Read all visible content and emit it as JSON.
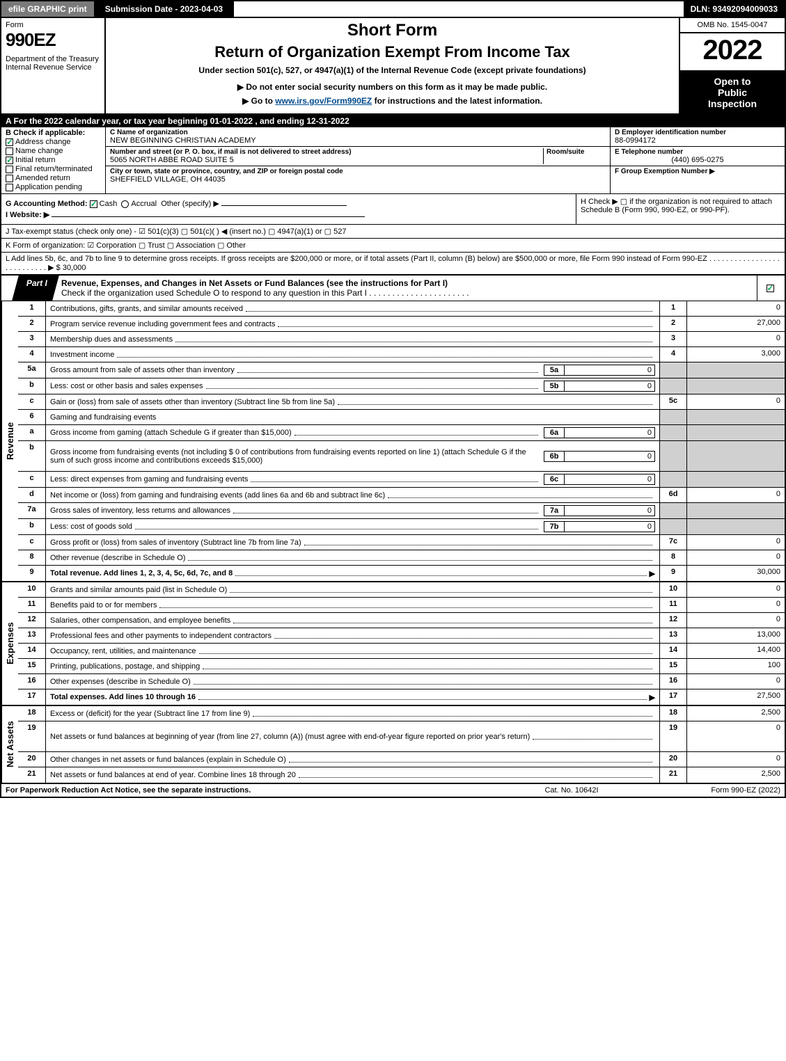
{
  "topbar": {
    "efile": "efile GRAPHIC print",
    "submission": "Submission Date - 2023-04-03",
    "dln": "DLN: 93492094009033"
  },
  "header": {
    "form_word": "Form",
    "form_num": "990EZ",
    "dept": "Department of the Treasury\nInternal Revenue Service",
    "title1": "Short Form",
    "title2": "Return of Organization Exempt From Income Tax",
    "sub1": "Under section 501(c), 527, or 4947(a)(1) of the Internal Revenue Code (except private foundations)",
    "sub2": "▶ Do not enter social security numbers on this form as it may be made public.",
    "sub3_pre": "▶ Go to ",
    "sub3_link": "www.irs.gov/Form990EZ",
    "sub3_post": " for instructions and the latest information.",
    "omb": "OMB No. 1545-0047",
    "year": "2022",
    "inspect1": "Open to",
    "inspect2": "Public",
    "inspect3": "Inspection"
  },
  "row_a": "A  For the 2022 calendar year, or tax year beginning 01-01-2022 , and ending 12-31-2022",
  "section_b": {
    "title": "B  Check if applicable:",
    "items": [
      {
        "label": "Address change",
        "checked": true
      },
      {
        "label": "Name change",
        "checked": false
      },
      {
        "label": "Initial return",
        "checked": true
      },
      {
        "label": "Final return/terminated",
        "checked": false
      },
      {
        "label": "Amended return",
        "checked": false
      },
      {
        "label": "Application pending",
        "checked": false
      }
    ]
  },
  "section_c": {
    "name_lbl": "C Name of organization",
    "name_val": "NEW BEGINNING CHRISTIAN ACADEMY",
    "street_lbl": "Number and street (or P. O. box, if mail is not delivered to street address)",
    "room_lbl": "Room/suite",
    "street_val": "5065 NORTH ABBE ROAD SUITE 5",
    "city_lbl": "City or town, state or province, country, and ZIP or foreign postal code",
    "city_val": "SHEFFIELD VILLAGE, OH  44035"
  },
  "section_d": {
    "ein_lbl": "D Employer identification number",
    "ein_val": "88-0994172",
    "phone_lbl": "E Telephone number",
    "phone_val": "(440) 695-0275",
    "group_lbl": "F Group Exemption Number  ▶"
  },
  "row_g": {
    "label": "G Accounting Method:",
    "cash": "Cash",
    "accrual": "Accrual",
    "other": "Other (specify) ▶"
  },
  "row_h": "H  Check ▶  ▢  if the organization is not required to attach Schedule B (Form 990, 990-EZ, or 990-PF).",
  "row_i": "I Website: ▶",
  "row_j": "J Tax-exempt status (check only one) - ☑ 501(c)(3)  ▢ 501(c)(  ) ◀ (insert no.)  ▢ 4947(a)(1) or  ▢ 527",
  "row_k": "K Form of organization:  ☑ Corporation  ▢ Trust  ▢ Association  ▢ Other",
  "row_l": {
    "text": "L Add lines 5b, 6c, and 7b to line 9 to determine gross receipts. If gross receipts are $200,000 or more, or if total assets (Part II, column (B) below) are $500,000 or more, file Form 990 instead of Form 990-EZ . . . . . . . . . . . . . . . . . . . . . . . . . . .  ▶ $",
    "amount": "30,000"
  },
  "part1": {
    "tab": "Part I",
    "title": "Revenue, Expenses, and Changes in Net Assets or Fund Balances (see the instructions for Part I)",
    "subtitle": "Check if the organization used Schedule O to respond to any question in this Part I . . . . . . . . . . . . . . . . . . . . . .",
    "checked": true
  },
  "sections": {
    "revenue": {
      "label": "Revenue",
      "rows": [
        {
          "ln": "1",
          "desc": "Contributions, gifts, grants, and similar amounts received",
          "num": "1",
          "amt": "0"
        },
        {
          "ln": "2",
          "desc": "Program service revenue including government fees and contracts",
          "num": "2",
          "amt": "27,000"
        },
        {
          "ln": "3",
          "desc": "Membership dues and assessments",
          "num": "3",
          "amt": "0"
        },
        {
          "ln": "4",
          "desc": "Investment income",
          "num": "4",
          "amt": "3,000"
        },
        {
          "ln": "5a",
          "desc": "Gross amount from sale of assets other than inventory",
          "sub_n": "5a",
          "sub_v": "0",
          "shade": true
        },
        {
          "ln": "b",
          "desc": "Less: cost or other basis and sales expenses",
          "sub_n": "5b",
          "sub_v": "0",
          "shade": true
        },
        {
          "ln": "c",
          "desc": "Gain or (loss) from sale of assets other than inventory (Subtract line 5b from line 5a)",
          "num": "5c",
          "amt": "0"
        },
        {
          "ln": "6",
          "desc": "Gaming and fundraising events",
          "shade": true,
          "nonum": true
        },
        {
          "ln": "a",
          "desc": "Gross income from gaming (attach Schedule G if greater than $15,000)",
          "sub_n": "6a",
          "sub_v": "0",
          "shade": true
        },
        {
          "ln": "b",
          "desc": "Gross income from fundraising events (not including $ 0  of contributions from fundraising events reported on line 1) (attach Schedule G if the sum of such gross income and contributions exceeds $15,000)",
          "sub_n": "6b",
          "sub_v": "0",
          "shade": true,
          "tall": true
        },
        {
          "ln": "c",
          "desc": "Less: direct expenses from gaming and fundraising events",
          "sub_n": "6c",
          "sub_v": "0",
          "shade": true
        },
        {
          "ln": "d",
          "desc": "Net income or (loss) from gaming and fundraising events (add lines 6a and 6b and subtract line 6c)",
          "num": "6d",
          "amt": "0"
        },
        {
          "ln": "7a",
          "desc": "Gross sales of inventory, less returns and allowances",
          "sub_n": "7a",
          "sub_v": "0",
          "shade": true
        },
        {
          "ln": "b",
          "desc": "Less: cost of goods sold",
          "sub_n": "7b",
          "sub_v": "0",
          "shade": true
        },
        {
          "ln": "c",
          "desc": "Gross profit or (loss) from sales of inventory (Subtract line 7b from line 7a)",
          "num": "7c",
          "amt": "0"
        },
        {
          "ln": "8",
          "desc": "Other revenue (describe in Schedule O)",
          "num": "8",
          "amt": "0"
        },
        {
          "ln": "9",
          "desc": "Total revenue. Add lines 1, 2, 3, 4, 5c, 6d, 7c, and 8",
          "num": "9",
          "amt": "30,000",
          "bold": true,
          "arrow": true
        }
      ]
    },
    "expenses": {
      "label": "Expenses",
      "rows": [
        {
          "ln": "10",
          "desc": "Grants and similar amounts paid (list in Schedule O)",
          "num": "10",
          "amt": "0"
        },
        {
          "ln": "11",
          "desc": "Benefits paid to or for members",
          "num": "11",
          "amt": "0"
        },
        {
          "ln": "12",
          "desc": "Salaries, other compensation, and employee benefits",
          "num": "12",
          "amt": "0"
        },
        {
          "ln": "13",
          "desc": "Professional fees and other payments to independent contractors",
          "num": "13",
          "amt": "13,000"
        },
        {
          "ln": "14",
          "desc": "Occupancy, rent, utilities, and maintenance",
          "num": "14",
          "amt": "14,400"
        },
        {
          "ln": "15",
          "desc": "Printing, publications, postage, and shipping",
          "num": "15",
          "amt": "100"
        },
        {
          "ln": "16",
          "desc": "Other expenses (describe in Schedule O)",
          "num": "16",
          "amt": "0"
        },
        {
          "ln": "17",
          "desc": "Total expenses. Add lines 10 through 16",
          "num": "17",
          "amt": "27,500",
          "bold": true,
          "arrow": true
        }
      ]
    },
    "netassets": {
      "label": "Net Assets",
      "rows": [
        {
          "ln": "18",
          "desc": "Excess or (deficit) for the year (Subtract line 17 from line 9)",
          "num": "18",
          "amt": "2,500"
        },
        {
          "ln": "19",
          "desc": "Net assets or fund balances at beginning of year (from line 27, column (A)) (must agree with end-of-year figure reported on prior year's return)",
          "num": "19",
          "amt": "0",
          "tall": true
        },
        {
          "ln": "20",
          "desc": "Other changes in net assets or fund balances (explain in Schedule O)",
          "num": "20",
          "amt": "0"
        },
        {
          "ln": "21",
          "desc": "Net assets or fund balances at end of year. Combine lines 18 through 20",
          "num": "21",
          "amt": "2,500"
        }
      ]
    }
  },
  "footer": {
    "left": "For Paperwork Reduction Act Notice, see the separate instructions.",
    "mid": "Cat. No. 10642I",
    "right": "Form 990-EZ (2022)"
  }
}
